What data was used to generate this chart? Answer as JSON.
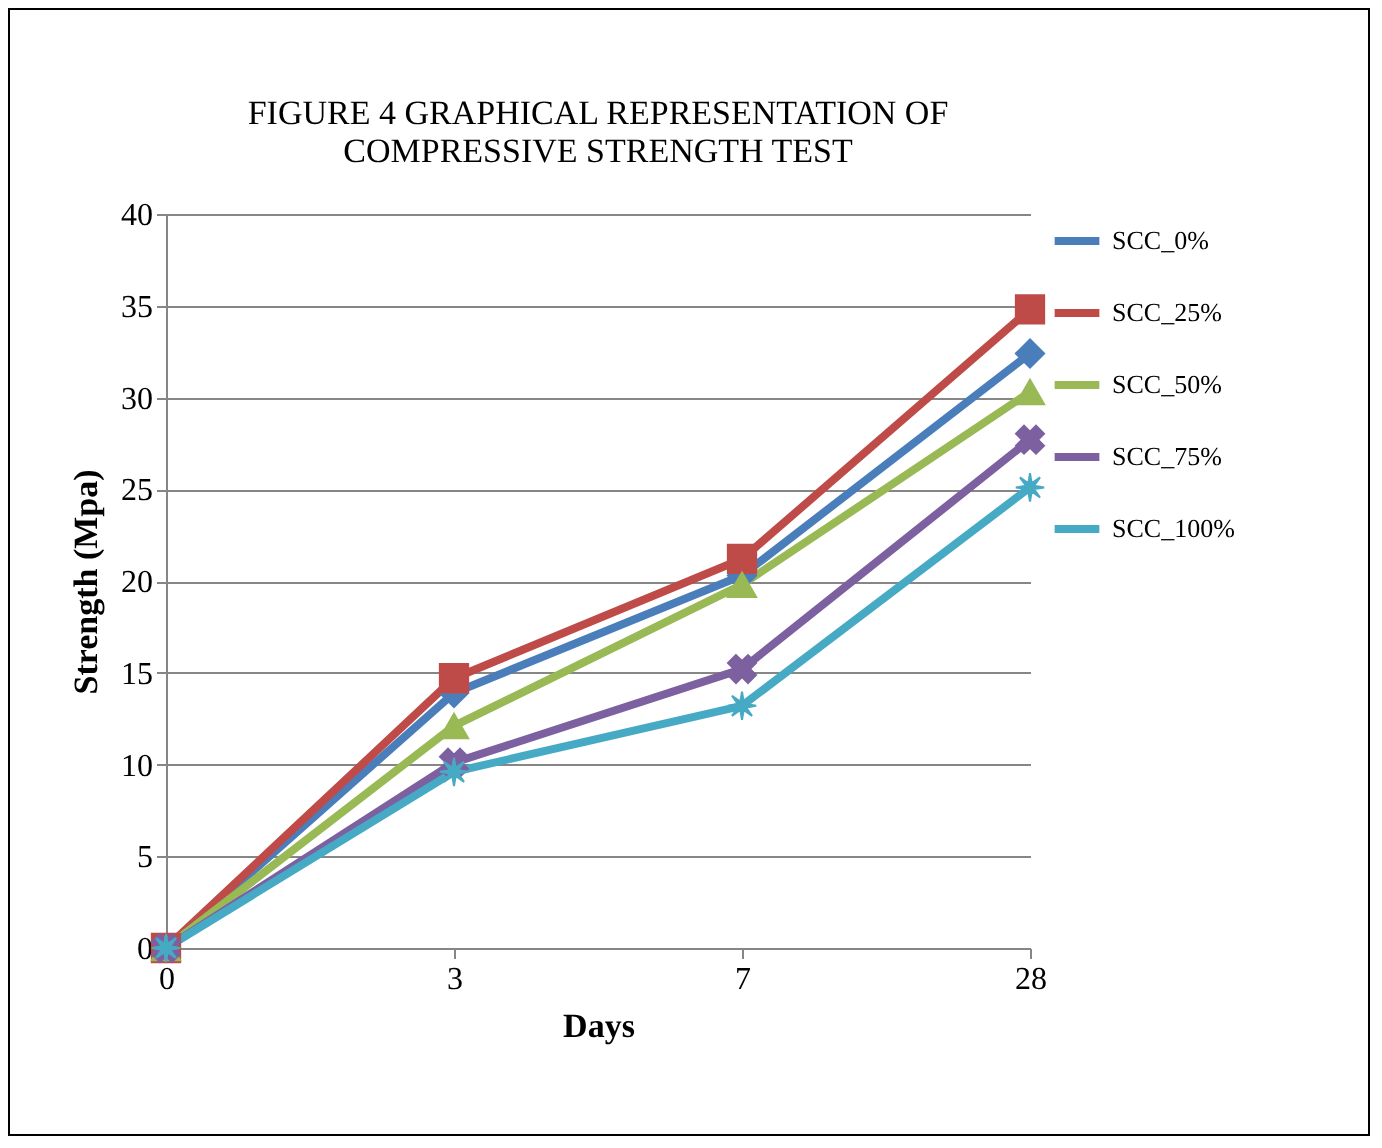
{
  "chart_data": {
    "type": "line",
    "title": "FIGURE 4  GRAPHICAL REPRESENTATION OF\nCOMPRESSIVE STRENGTH TEST",
    "xlabel": "Days",
    "ylabel": "Strength  (Mpa)",
    "categories": [
      "0",
      "3",
      "7",
      "28"
    ],
    "series": [
      {
        "name": "SCC_0%",
        "color": "#4a7ebb",
        "marker": "diamond",
        "values": [
          0,
          13.9,
          20.3,
          32.4
        ]
      },
      {
        "name": "SCC_25%",
        "color": "#be4b48",
        "marker": "square",
        "values": [
          0,
          14.7,
          21.2,
          34.8
        ]
      },
      {
        "name": "SCC_50%",
        "color": "#98b954",
        "marker": "triangle",
        "values": [
          0,
          12.1,
          19.8,
          30.3
        ]
      },
      {
        "name": "SCC_75%",
        "color": "#7d60a0",
        "marker": "cross",
        "values": [
          0,
          10.1,
          15.2,
          27.7
        ]
      },
      {
        "name": "SCC_100%",
        "color": "#46aac5",
        "marker": "star",
        "values": [
          0,
          9.6,
          13.2,
          25.1
        ]
      }
    ],
    "ylim": [
      0,
      40
    ],
    "yticks": [
      0,
      5,
      10,
      15,
      20,
      25,
      30,
      35,
      40
    ],
    "grid": "y",
    "legend": "right",
    "line_style": "solid"
  }
}
